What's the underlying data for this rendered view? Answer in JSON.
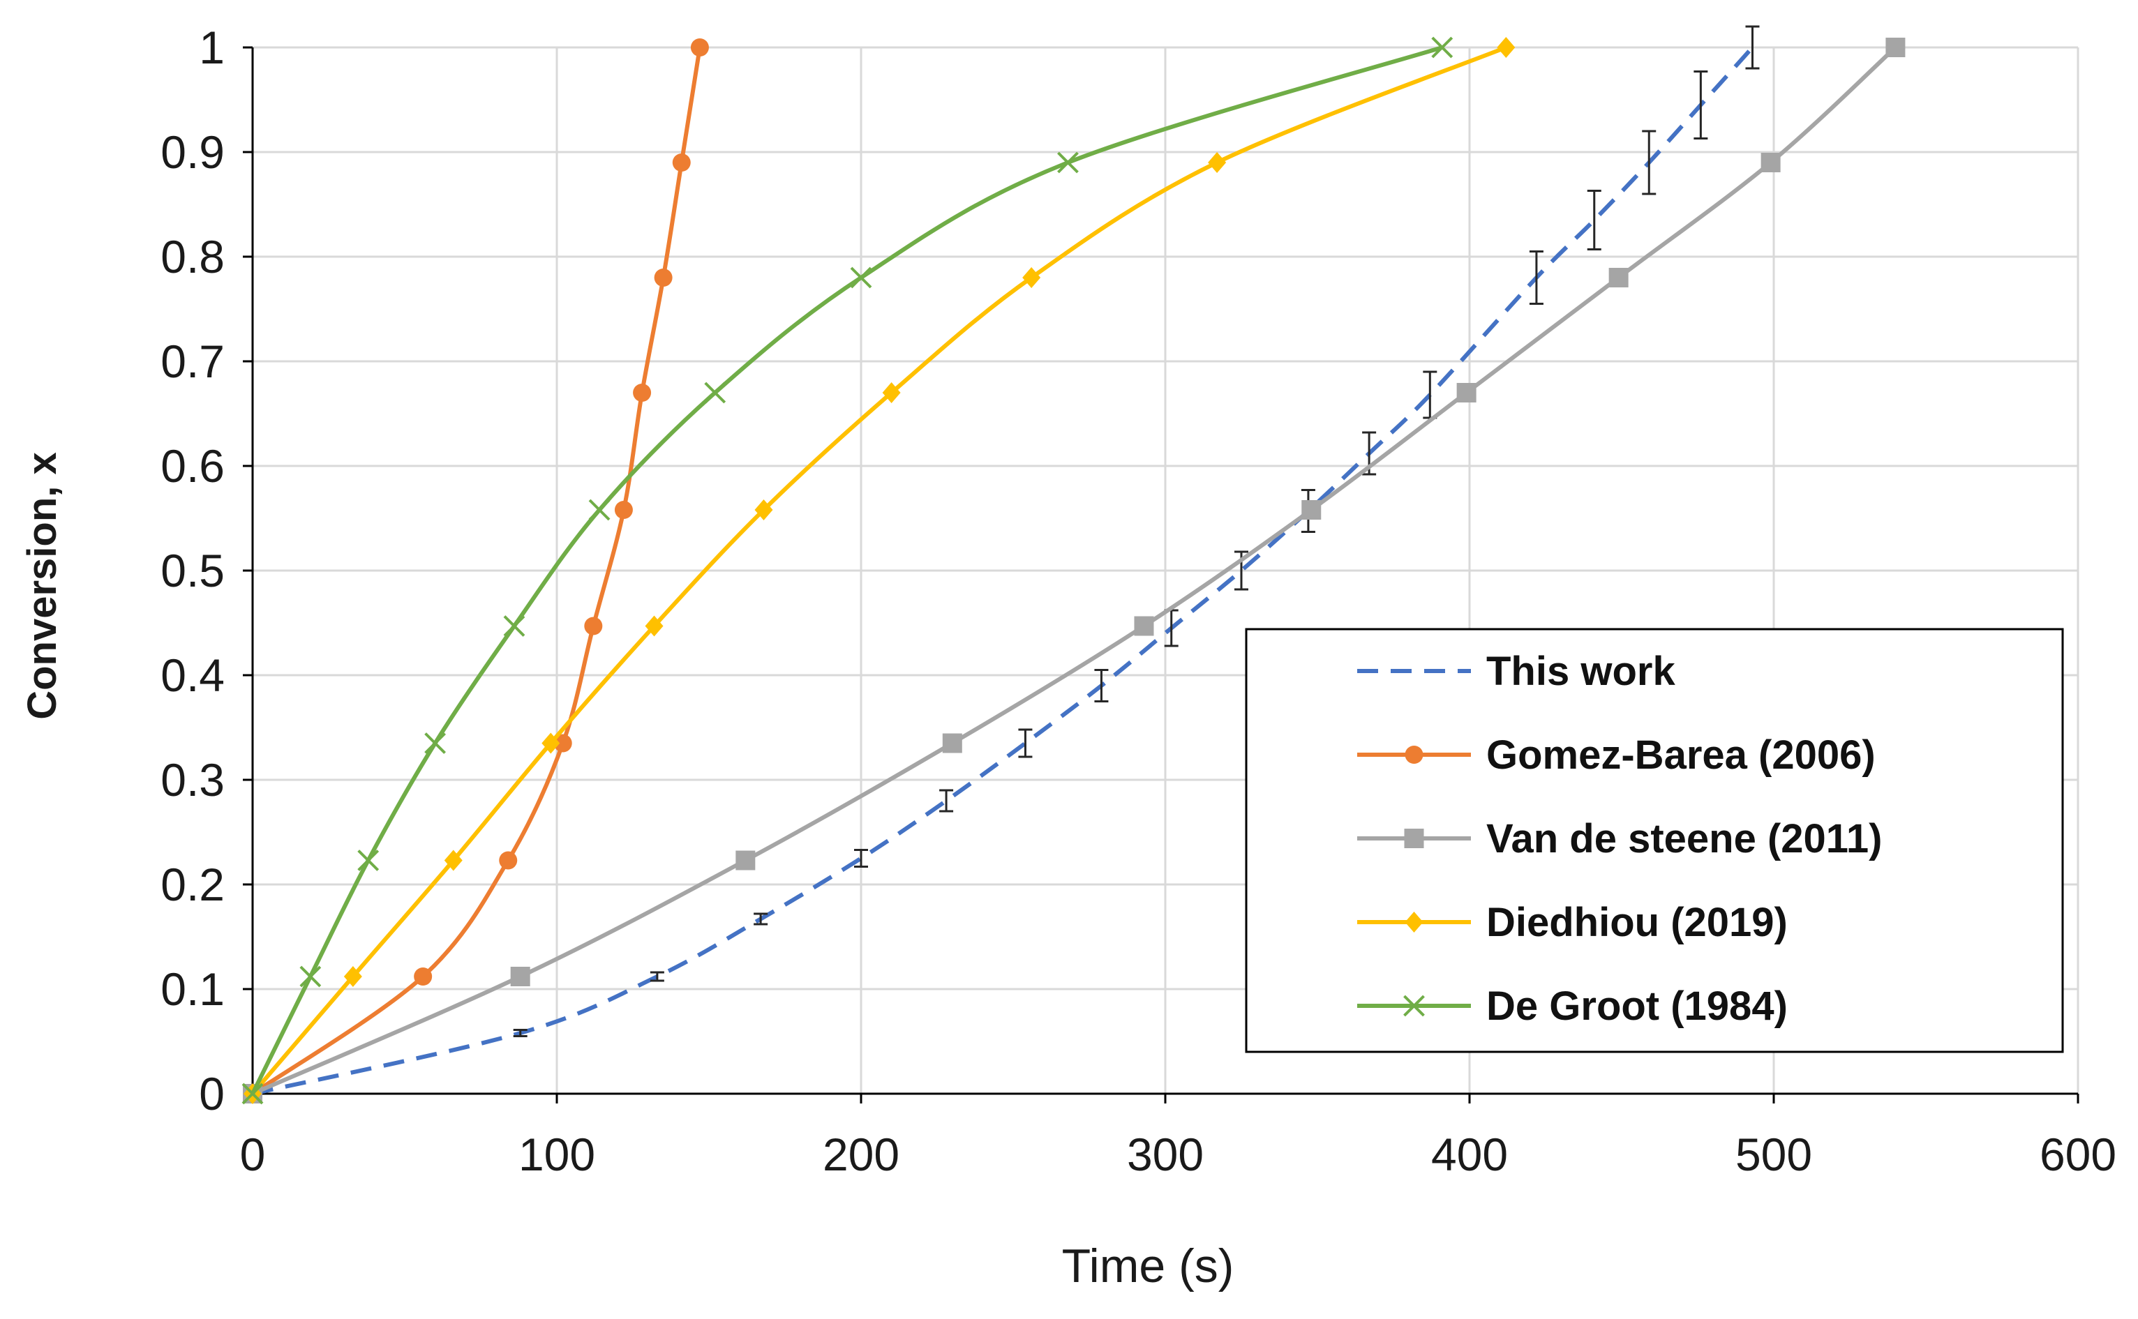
{
  "chart_data": {
    "type": "line",
    "title": "",
    "xlabel": "Time (s)",
    "ylabel": "Conversion, x",
    "xlim": [
      0,
      600
    ],
    "ylim": [
      0,
      1
    ],
    "xticks": [
      0,
      100,
      200,
      300,
      400,
      500,
      600
    ],
    "yticks": [
      0,
      0.1,
      0.2,
      0.3,
      0.4,
      0.5,
      0.6,
      0.7,
      0.8,
      0.9,
      1
    ],
    "xtick_labels": [
      "0",
      "100",
      "200",
      "300",
      "400",
      "500",
      "600"
    ],
    "ytick_labels": [
      "0",
      "0.1",
      "0.2",
      "0.3",
      "0.4",
      "0.5",
      "0.6",
      "0.7",
      "0.8",
      "0.9",
      "1"
    ],
    "grid": true,
    "legend_position": "bottom-right",
    "series": [
      {
        "name": "This work",
        "color": "#4472C4",
        "line_style": "dashed",
        "marker": "none",
        "x": [
          0,
          88,
          133,
          167,
          200,
          228,
          254,
          279,
          302,
          325,
          347,
          367,
          387,
          422,
          441,
          459,
          476,
          493
        ],
        "y": [
          0,
          0.058,
          0.112,
          0.167,
          0.225,
          0.28,
          0.335,
          0.39,
          0.445,
          0.5,
          0.557,
          0.612,
          0.668,
          0.78,
          0.835,
          0.89,
          0.945,
          1.0
        ],
        "error": [
          0,
          0.003,
          0.004,
          0.005,
          0.008,
          0.01,
          0.013,
          0.015,
          0.017,
          0.018,
          0.02,
          0.02,
          0.022,
          0.025,
          0.028,
          0.03,
          0.032,
          0.02
        ]
      },
      {
        "name": "Gomez-Barea (2006)",
        "color": "#ED7D31",
        "line_style": "solid",
        "marker": "circle",
        "x": [
          0,
          56,
          84,
          102,
          112,
          122,
          128,
          135,
          141,
          147
        ],
        "y": [
          0,
          0.112,
          0.223,
          0.335,
          0.447,
          0.558,
          0.67,
          0.78,
          0.89,
          1.0
        ]
      },
      {
        "name": "Van de steene (2011)",
        "color": "#A5A5A5",
        "line_style": "solid",
        "marker": "square",
        "x": [
          0,
          88,
          162,
          230,
          293,
          348,
          399,
          449,
          499,
          540
        ],
        "y": [
          0,
          0.112,
          0.223,
          0.335,
          0.447,
          0.558,
          0.67,
          0.78,
          0.89,
          1.0
        ]
      },
      {
        "name": "Diedhiou (2019)",
        "color": "#FFC000",
        "line_style": "solid",
        "marker": "diamond",
        "x": [
          0,
          33,
          66,
          98,
          132,
          168,
          210,
          256,
          317,
          412
        ],
        "y": [
          0,
          0.112,
          0.223,
          0.335,
          0.447,
          0.558,
          0.67,
          0.78,
          0.89,
          1.0
        ]
      },
      {
        "name": "De Groot (1984)",
        "color": "#70AD47",
        "line_style": "solid",
        "marker": "x",
        "x": [
          0,
          19,
          38,
          60,
          86,
          114,
          152,
          200,
          268,
          391
        ],
        "y": [
          0,
          0.112,
          0.223,
          0.335,
          0.447,
          0.558,
          0.67,
          0.78,
          0.89,
          1.0
        ]
      }
    ]
  }
}
